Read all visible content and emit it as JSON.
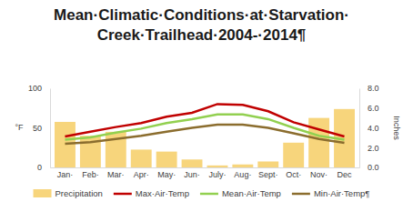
{
  "chart_data": {
    "type": "bar",
    "title": "Mean·Climatic·Conditions·at·Starvation·Creek·Trailhead·2004-·2014¶",
    "categories": [
      "Jan·",
      "Feb·",
      "Mar·",
      "Apr·",
      "May·",
      "Jun·",
      "July·",
      "Aug·",
      "Sept·",
      "Oct·",
      "Nov·",
      "Dec"
    ],
    "y_label": "°F",
    "y2_label": "Inches",
    "ylim": [
      0,
      100
    ],
    "yticks": [
      0,
      50,
      100
    ],
    "y2lim": [
      0,
      8
    ],
    "y2ticks": [
      {
        "value": 0,
        "label": "0.0"
      },
      {
        "value": 2,
        "label": "2.0"
      },
      {
        "value": 4,
        "label": "4.0"
      },
      {
        "value": 6,
        "label": "6.0"
      },
      {
        "value": 8,
        "label": "8.0"
      }
    ],
    "grid": false,
    "legend": "bottom",
    "series": [
      {
        "name": "Precipitation",
        "type": "bar",
        "axis": "y2",
        "color": "#f7d57c",
        "values": [
          4.6,
          3.2,
          3.6,
          1.8,
          1.6,
          0.8,
          0.2,
          0.3,
          0.6,
          2.5,
          5.0,
          5.9
        ]
      },
      {
        "name": "Max·Air·Temp",
        "type": "line",
        "color": "#c00000",
        "values": [
          39,
          45,
          51,
          56,
          64,
          69,
          80,
          79,
          71,
          57,
          48,
          39
        ]
      },
      {
        "name": "Mean·Air·Temp",
        "type": "line",
        "color": "#92d050",
        "values": [
          35,
          38,
          44,
          49,
          56,
          61,
          67,
          67,
          61,
          50,
          40,
          35
        ]
      },
      {
        "name": "Min·Air·Temp¶",
        "type": "line",
        "color": "#8b6d2e",
        "values": [
          30,
          32,
          36,
          40,
          45,
          50,
          54,
          54,
          50,
          43,
          36,
          31
        ]
      }
    ]
  }
}
